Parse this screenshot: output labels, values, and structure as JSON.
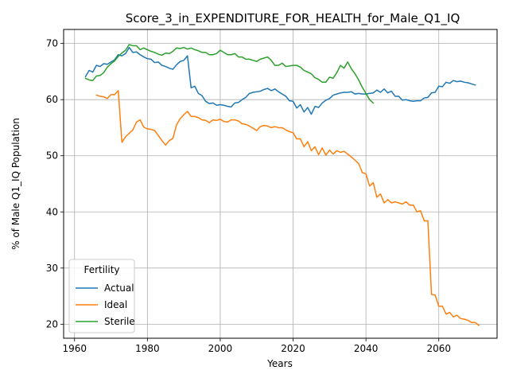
{
  "chart_data": {
    "type": "line",
    "title": "Score_3_in_EXPENDITURE_FOR_HEALTH_for_Male_Q1_IQ",
    "xlabel": "Years",
    "ylabel": "% of Male Q1_IQ Population",
    "xlim": [
      1957,
      2076
    ],
    "ylim": [
      17.5,
      72.5
    ],
    "xticks": [
      1960,
      1980,
      2000,
      2020,
      2040,
      2060
    ],
    "yticks": [
      20,
      30,
      40,
      50,
      60,
      70
    ],
    "grid": true,
    "legend": {
      "title": "Fertility",
      "placement": "lower-left"
    },
    "series": [
      {
        "name": "Actual",
        "color": "#1f77b4",
        "points": [
          [
            1963,
            64.1
          ],
          [
            1964,
            65.2
          ],
          [
            1965,
            64.9
          ],
          [
            1966,
            66.1
          ],
          [
            1967,
            65.9
          ],
          [
            1968,
            66.4
          ],
          [
            1969,
            66.3
          ],
          [
            1970,
            66.7
          ],
          [
            1971,
            67.1
          ],
          [
            1972,
            68.0
          ],
          [
            1973,
            67.8
          ],
          [
            1974,
            68.2
          ],
          [
            1975,
            69.3
          ],
          [
            1976,
            68.4
          ],
          [
            1977,
            68.5
          ],
          [
            1978,
            68.0
          ],
          [
            1979,
            67.6
          ],
          [
            1980,
            67.3
          ],
          [
            1981,
            67.2
          ],
          [
            1982,
            66.6
          ],
          [
            1983,
            66.7
          ],
          [
            1984,
            66.1
          ],
          [
            1985,
            65.9
          ],
          [
            1986,
            65.6
          ],
          [
            1987,
            65.4
          ],
          [
            1988,
            66.2
          ],
          [
            1989,
            66.8
          ],
          [
            1990,
            67.0
          ],
          [
            1991,
            67.8
          ],
          [
            1992,
            62.1
          ],
          [
            1993,
            62.4
          ],
          [
            1994,
            61.1
          ],
          [
            1995,
            60.7
          ],
          [
            1996,
            59.7
          ],
          [
            1997,
            59.3
          ],
          [
            1998,
            59.4
          ],
          [
            1999,
            59.0
          ],
          [
            2000,
            59.1
          ],
          [
            2001,
            59.0
          ],
          [
            2002,
            58.8
          ],
          [
            2003,
            58.7
          ],
          [
            2004,
            59.4
          ],
          [
            2005,
            59.5
          ],
          [
            2006,
            60.0
          ],
          [
            2007,
            60.4
          ],
          [
            2008,
            61.1
          ],
          [
            2009,
            61.3
          ],
          [
            2010,
            61.4
          ],
          [
            2011,
            61.5
          ],
          [
            2012,
            61.8
          ],
          [
            2013,
            62.0
          ],
          [
            2014,
            61.6
          ],
          [
            2015,
            61.9
          ],
          [
            2016,
            61.4
          ],
          [
            2017,
            61.0
          ],
          [
            2018,
            60.6
          ],
          [
            2019,
            59.8
          ],
          [
            2020,
            59.7
          ],
          [
            2021,
            58.5
          ],
          [
            2022,
            59.1
          ],
          [
            2023,
            57.8
          ],
          [
            2024,
            58.6
          ],
          [
            2025,
            57.4
          ],
          [
            2026,
            58.8
          ],
          [
            2027,
            58.6
          ],
          [
            2028,
            59.4
          ],
          [
            2029,
            59.9
          ],
          [
            2030,
            60.2
          ],
          [
            2031,
            60.8
          ],
          [
            2032,
            61.0
          ],
          [
            2033,
            61.2
          ],
          [
            2034,
            61.3
          ],
          [
            2035,
            61.3
          ],
          [
            2036,
            61.4
          ],
          [
            2037,
            61.0
          ],
          [
            2038,
            61.1
          ],
          [
            2039,
            61.0
          ],
          [
            2040,
            61.0
          ],
          [
            2041,
            61.1
          ],
          [
            2042,
            61.2
          ],
          [
            2043,
            61.7
          ],
          [
            2044,
            61.3
          ],
          [
            2045,
            61.9
          ],
          [
            2046,
            61.2
          ],
          [
            2047,
            61.5
          ],
          [
            2048,
            60.6
          ],
          [
            2049,
            60.6
          ],
          [
            2050,
            59.9
          ],
          [
            2051,
            60.0
          ],
          [
            2052,
            59.8
          ],
          [
            2053,
            59.7
          ],
          [
            2054,
            59.8
          ],
          [
            2055,
            59.8
          ],
          [
            2056,
            60.3
          ],
          [
            2057,
            60.4
          ],
          [
            2058,
            61.2
          ],
          [
            2059,
            61.3
          ],
          [
            2060,
            62.4
          ],
          [
            2061,
            62.3
          ],
          [
            2062,
            63.1
          ],
          [
            2063,
            62.9
          ],
          [
            2064,
            63.4
          ],
          [
            2065,
            63.2
          ],
          [
            2066,
            63.3
          ],
          [
            2067,
            63.1
          ],
          [
            2068,
            63.0
          ],
          [
            2069,
            62.8
          ],
          [
            2070,
            62.6
          ]
        ]
      },
      {
        "name": "Ideal",
        "color": "#ff7f0e",
        "points": [
          [
            1966,
            60.8
          ],
          [
            1967,
            60.6
          ],
          [
            1968,
            60.5
          ],
          [
            1969,
            60.2
          ],
          [
            1970,
            60.9
          ],
          [
            1971,
            60.9
          ],
          [
            1972,
            61.6
          ],
          [
            1973,
            52.4
          ],
          [
            1974,
            53.4
          ],
          [
            1975,
            54.0
          ],
          [
            1976,
            54.6
          ],
          [
            1977,
            56.0
          ],
          [
            1978,
            56.4
          ],
          [
            1979,
            55.1
          ],
          [
            1980,
            54.8
          ],
          [
            1981,
            54.7
          ],
          [
            1982,
            54.5
          ],
          [
            1983,
            53.6
          ],
          [
            1984,
            52.7
          ],
          [
            1985,
            51.9
          ],
          [
            1986,
            52.7
          ],
          [
            1987,
            53.1
          ],
          [
            1988,
            55.5
          ],
          [
            1989,
            56.6
          ],
          [
            1990,
            57.3
          ],
          [
            1991,
            57.9
          ],
          [
            1992,
            57.0
          ],
          [
            1993,
            57.0
          ],
          [
            1994,
            56.8
          ],
          [
            1995,
            56.4
          ],
          [
            1996,
            56.3
          ],
          [
            1997,
            55.9
          ],
          [
            1998,
            56.4
          ],
          [
            1999,
            56.3
          ],
          [
            2000,
            56.5
          ],
          [
            2001,
            56.1
          ],
          [
            2002,
            56.0
          ],
          [
            2003,
            56.4
          ],
          [
            2004,
            56.4
          ],
          [
            2005,
            56.2
          ],
          [
            2006,
            55.7
          ],
          [
            2007,
            55.6
          ],
          [
            2008,
            55.3
          ],
          [
            2009,
            54.9
          ],
          [
            2010,
            54.5
          ],
          [
            2011,
            55.2
          ],
          [
            2012,
            55.4
          ],
          [
            2013,
            55.3
          ],
          [
            2014,
            55.0
          ],
          [
            2015,
            55.2
          ],
          [
            2016,
            55.0
          ],
          [
            2017,
            55.0
          ],
          [
            2018,
            54.6
          ],
          [
            2019,
            54.3
          ],
          [
            2020,
            54.1
          ],
          [
            2021,
            53.0
          ],
          [
            2022,
            53.0
          ],
          [
            2023,
            51.6
          ],
          [
            2024,
            52.5
          ],
          [
            2025,
            50.9
          ],
          [
            2026,
            51.6
          ],
          [
            2027,
            50.2
          ],
          [
            2028,
            51.4
          ],
          [
            2029,
            50.1
          ],
          [
            2030,
            51.0
          ],
          [
            2031,
            50.3
          ],
          [
            2032,
            50.9
          ],
          [
            2033,
            50.6
          ],
          [
            2034,
            50.8
          ],
          [
            2035,
            50.3
          ],
          [
            2036,
            49.8
          ],
          [
            2037,
            49.2
          ],
          [
            2038,
            48.6
          ],
          [
            2039,
            47.0
          ],
          [
            2040,
            46.8
          ],
          [
            2041,
            44.6
          ],
          [
            2042,
            45.2
          ],
          [
            2043,
            42.6
          ],
          [
            2044,
            43.2
          ],
          [
            2045,
            41.6
          ],
          [
            2046,
            42.2
          ],
          [
            2047,
            41.6
          ],
          [
            2048,
            41.8
          ],
          [
            2049,
            41.6
          ],
          [
            2050,
            41.4
          ],
          [
            2051,
            41.8
          ],
          [
            2052,
            41.2
          ],
          [
            2053,
            41.2
          ],
          [
            2054,
            40.0
          ],
          [
            2055,
            40.2
          ],
          [
            2056,
            38.4
          ],
          [
            2057,
            38.4
          ],
          [
            2058,
            25.3
          ],
          [
            2059,
            25.2
          ],
          [
            2060,
            23.2
          ],
          [
            2061,
            23.2
          ],
          [
            2062,
            21.8
          ],
          [
            2063,
            22.1
          ],
          [
            2064,
            21.3
          ],
          [
            2065,
            21.6
          ],
          [
            2066,
            21.0
          ],
          [
            2067,
            20.9
          ],
          [
            2068,
            20.7
          ],
          [
            2069,
            20.3
          ],
          [
            2070,
            20.3
          ],
          [
            2071,
            19.8
          ]
        ]
      },
      {
        "name": "Sterile",
        "color": "#2ca02c",
        "points": [
          [
            1963,
            63.8
          ],
          [
            1964,
            63.5
          ],
          [
            1965,
            63.4
          ],
          [
            1966,
            64.2
          ],
          [
            1967,
            64.3
          ],
          [
            1968,
            64.8
          ],
          [
            1969,
            65.8
          ],
          [
            1970,
            66.4
          ],
          [
            1971,
            66.9
          ],
          [
            1972,
            67.7
          ],
          [
            1973,
            68.3
          ],
          [
            1974,
            68.8
          ],
          [
            1975,
            69.8
          ],
          [
            1976,
            69.6
          ],
          [
            1977,
            69.6
          ],
          [
            1978,
            68.9
          ],
          [
            1979,
            69.2
          ],
          [
            1980,
            68.9
          ],
          [
            1981,
            68.6
          ],
          [
            1982,
            68.4
          ],
          [
            1983,
            68.1
          ],
          [
            1984,
            67.9
          ],
          [
            1985,
            68.3
          ],
          [
            1986,
            68.2
          ],
          [
            1987,
            68.6
          ],
          [
            1988,
            69.2
          ],
          [
            1989,
            69.1
          ],
          [
            1990,
            69.3
          ],
          [
            1991,
            69.0
          ],
          [
            1992,
            69.2
          ],
          [
            1993,
            68.9
          ],
          [
            1994,
            68.7
          ],
          [
            1995,
            68.4
          ],
          [
            1996,
            68.4
          ],
          [
            1997,
            68.0
          ],
          [
            1998,
            68.0
          ],
          [
            1999,
            68.2
          ],
          [
            2000,
            68.8
          ],
          [
            2001,
            68.4
          ],
          [
            2002,
            68.0
          ],
          [
            2003,
            68.0
          ],
          [
            2004,
            68.2
          ],
          [
            2005,
            67.6
          ],
          [
            2006,
            67.6
          ],
          [
            2007,
            67.2
          ],
          [
            2008,
            67.2
          ],
          [
            2009,
            67.0
          ],
          [
            2010,
            66.8
          ],
          [
            2011,
            67.2
          ],
          [
            2012,
            67.4
          ],
          [
            2013,
            67.6
          ],
          [
            2014,
            67.0
          ],
          [
            2015,
            66.1
          ],
          [
            2016,
            66.1
          ],
          [
            2017,
            66.5
          ],
          [
            2018,
            65.9
          ],
          [
            2019,
            66.0
          ],
          [
            2020,
            66.1
          ],
          [
            2021,
            66.1
          ],
          [
            2022,
            65.8
          ],
          [
            2023,
            65.2
          ],
          [
            2024,
            64.9
          ],
          [
            2025,
            64.6
          ],
          [
            2026,
            63.9
          ],
          [
            2027,
            63.6
          ],
          [
            2028,
            63.1
          ],
          [
            2029,
            63.1
          ],
          [
            2030,
            64.0
          ],
          [
            2031,
            63.8
          ],
          [
            2032,
            64.8
          ],
          [
            2033,
            66.1
          ],
          [
            2034,
            65.6
          ],
          [
            2035,
            66.7
          ],
          [
            2036,
            65.5
          ],
          [
            2037,
            64.6
          ],
          [
            2038,
            63.5
          ],
          [
            2039,
            62.2
          ],
          [
            2040,
            61.1
          ],
          [
            2041,
            60.0
          ],
          [
            2042,
            59.4
          ]
        ]
      }
    ]
  }
}
